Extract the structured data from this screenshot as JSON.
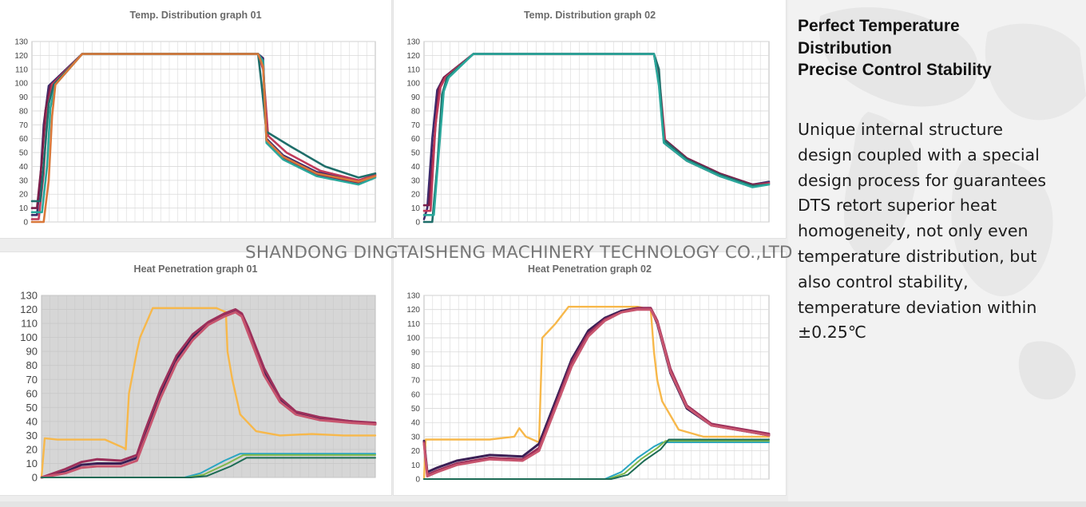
{
  "watermark": "SHANDONG DINGTAISHENG MACHINERY TECHNOLOGY CO.,LTD",
  "headline_lines": [
    "Perfect Temperature",
    "Distribution",
    "Precise Control Stability"
  ],
  "body_lines": [
    "Unique internal structure",
    "design coupled with a special",
    "design process for guarantees",
    "DTS retort superior heat",
    "homogeneity,  not only even",
    "temperature distribution, but",
    "also control stability,",
    "temperature deviation within",
    "±0.25℃"
  ],
  "colors": {
    "temp_series": [
      "#3b2a6b",
      "#7a1f4a",
      "#c03a5a",
      "#1f6e6a",
      "#2aa79b",
      "#d9783a",
      "#5a3d8a",
      "#e07a8a",
      "#1c4f86",
      "#b05a3a"
    ],
    "reference": "#f7b84b",
    "hp_cold": [
      "#2aa5c2",
      "#7fb84a",
      "#1c6b55"
    ],
    "grid": "#d9d9d9",
    "plot_bg_gray": "#d6d6d6"
  },
  "chart_data": [
    {
      "type": "line",
      "title": "Temp. Distribution graph 01",
      "ylim": [
        0,
        130
      ],
      "yticks": [
        0,
        10,
        20,
        30,
        40,
        50,
        60,
        70,
        80,
        90,
        100,
        110,
        120,
        130
      ],
      "grid": true,
      "series": [
        {
          "x": [
            0,
            3,
            5,
            7,
            10,
            30,
            135,
            138,
            140,
            150,
            170,
            195,
            205
          ],
          "y": [
            5,
            5,
            30,
            70,
            98,
            121,
            121,
            118,
            60,
            48,
            36,
            29,
            34
          ]
        },
        {
          "x": [
            0,
            3,
            6,
            8,
            11,
            30,
            135,
            138,
            140,
            150,
            170,
            195,
            205
          ],
          "y": [
            10,
            10,
            45,
            80,
            98,
            121,
            121,
            114,
            58,
            46,
            34,
            28,
            33
          ]
        },
        {
          "x": [
            0,
            4,
            7,
            9,
            12,
            30,
            135,
            138,
            141,
            152,
            172,
            195,
            205
          ],
          "y": [
            2,
            2,
            35,
            78,
            99,
            121,
            121,
            110,
            62,
            50,
            37,
            30,
            34
          ]
        },
        {
          "x": [
            0,
            5,
            8,
            10,
            13,
            30,
            135,
            137,
            140,
            155,
            175,
            195,
            205
          ],
          "y": [
            15,
            15,
            55,
            85,
            99,
            121,
            121,
            100,
            65,
            54,
            40,
            32,
            35
          ]
        },
        {
          "x": [
            0,
            6,
            9,
            11,
            14,
            30,
            135,
            138,
            140,
            150,
            170,
            195,
            205
          ],
          "y": [
            7,
            7,
            40,
            82,
            99,
            121,
            121,
            116,
            57,
            45,
            33,
            27,
            32
          ]
        },
        {
          "x": [
            0,
            7,
            10,
            12,
            14,
            30,
            135,
            138,
            140,
            150,
            170,
            195,
            205
          ],
          "y": [
            0,
            0,
            30,
            76,
            99,
            121,
            121,
            112,
            59,
            47,
            35,
            29,
            33
          ]
        }
      ]
    },
    {
      "type": "line",
      "title": "Temp. Distribution graph 02",
      "ylim": [
        0,
        130
      ],
      "yticks": [
        0,
        10,
        20,
        30,
        40,
        50,
        60,
        70,
        80,
        90,
        100,
        110,
        120,
        130
      ],
      "grid": true,
      "series": [
        {
          "x": [
            0,
            2,
            5,
            8,
            12,
            30,
            140,
            143,
            146,
            160,
            180,
            200,
            210
          ],
          "y": [
            2,
            10,
            60,
            95,
            104,
            121,
            121,
            105,
            58,
            45,
            34,
            27,
            29
          ]
        },
        {
          "x": [
            0,
            3,
            6,
            9,
            12,
            30,
            140,
            143,
            146,
            160,
            180,
            200,
            210
          ],
          "y": [
            12,
            12,
            55,
            96,
            104,
            121,
            121,
            100,
            60,
            46,
            35,
            27,
            28
          ]
        },
        {
          "x": [
            0,
            4,
            7,
            10,
            13,
            30,
            140,
            144,
            147,
            160,
            180,
            200,
            210
          ],
          "y": [
            8,
            8,
            70,
            97,
            104,
            121,
            121,
            94,
            56,
            44,
            33,
            26,
            28
          ]
        },
        {
          "x": [
            0,
            5,
            8,
            11,
            14,
            30,
            140,
            143,
            146,
            160,
            180,
            200,
            210
          ],
          "y": [
            0,
            0,
            40,
            92,
            104,
            121,
            121,
            110,
            59,
            45,
            34,
            26,
            27
          ]
        },
        {
          "x": [
            0,
            6,
            9,
            12,
            15,
            30,
            140,
            143,
            146,
            160,
            180,
            200,
            210
          ],
          "y": [
            5,
            5,
            50,
            94,
            104,
            121,
            121,
            98,
            57,
            44,
            33,
            25,
            27
          ]
        }
      ]
    },
    {
      "type": "line",
      "title": "Heat Penetration graph 01",
      "ylim": [
        0,
        130
      ],
      "yticks": [
        0,
        10,
        20,
        30,
        40,
        50,
        60,
        70,
        80,
        90,
        100,
        110,
        120,
        130
      ],
      "grid": true,
      "series": [
        {
          "role": "reference",
          "x": [
            0,
            2,
            10,
            40,
            52,
            53,
            55,
            60,
            62,
            70,
            110,
            116,
            117,
            120,
            125,
            135,
            150,
            170,
            190,
            210
          ],
          "y": [
            0,
            28,
            27,
            27,
            21,
            20,
            60,
            90,
            100,
            121,
            121,
            118,
            90,
            70,
            45,
            33,
            30,
            31,
            30,
            30
          ]
        },
        {
          "role": "product",
          "x": [
            0,
            15,
            25,
            35,
            50,
            60,
            65,
            75,
            85,
            95,
            105,
            115,
            122,
            126,
            130,
            140,
            150,
            160,
            175,
            195,
            210
          ],
          "y": [
            0,
            4,
            9,
            10,
            10,
            14,
            30,
            60,
            85,
            100,
            110,
            116,
            119,
            116,
            105,
            75,
            55,
            46,
            42,
            40,
            38
          ]
        },
        {
          "role": "product",
          "x": [
            0,
            15,
            25,
            35,
            50,
            60,
            65,
            75,
            85,
            95,
            105,
            115,
            122,
            126,
            130,
            140,
            150,
            160,
            175,
            195,
            210
          ],
          "y": [
            0,
            6,
            11,
            13,
            12,
            16,
            33,
            63,
            87,
            102,
            111,
            117,
            120,
            117,
            107,
            78,
            57,
            47,
            43,
            40,
            39
          ]
        },
        {
          "role": "product",
          "x": [
            0,
            15,
            25,
            35,
            50,
            60,
            65,
            75,
            85,
            95,
            105,
            115,
            122,
            126,
            130,
            140,
            150,
            160,
            175,
            195,
            210
          ],
          "y": [
            0,
            3,
            7,
            8,
            8,
            12,
            27,
            57,
            82,
            98,
            109,
            115,
            118,
            115,
            103,
            73,
            54,
            45,
            41,
            39,
            38
          ]
        },
        {
          "role": "cold",
          "x": [
            0,
            90,
            100,
            115,
            125,
            210
          ],
          "y": [
            0,
            0,
            3,
            12,
            17,
            17
          ]
        },
        {
          "role": "cold",
          "x": [
            0,
            92,
            102,
            117,
            127,
            210
          ],
          "y": [
            0,
            0,
            2,
            10,
            16,
            16
          ]
        },
        {
          "role": "cold",
          "x": [
            0,
            94,
            104,
            119,
            129,
            210
          ],
          "y": [
            0,
            0,
            1,
            8,
            14,
            14
          ]
        }
      ]
    },
    {
      "type": "line",
      "title": "Heat Penetration graph 02",
      "ylim": [
        0,
        130
      ],
      "yticks": [
        0,
        10,
        20,
        30,
        40,
        50,
        60,
        70,
        80,
        90,
        100,
        110,
        120,
        130
      ],
      "grid": true,
      "series": [
        {
          "role": "reference",
          "x": [
            0,
            1,
            40,
            55,
            58,
            62,
            70,
            72,
            80,
            88,
            130,
            138,
            140,
            142,
            145,
            155,
            170,
            210
          ],
          "y": [
            0,
            28,
            28,
            30,
            36,
            30,
            26,
            100,
            110,
            122,
            122,
            120,
            90,
            70,
            55,
            35,
            30,
            30
          ]
        },
        {
          "role": "product",
          "x": [
            0,
            2,
            8,
            20,
            40,
            60,
            70,
            80,
            90,
            100,
            110,
            120,
            130,
            138,
            142,
            150,
            160,
            175,
            195,
            210
          ],
          "y": [
            27,
            5,
            8,
            13,
            17,
            16,
            25,
            55,
            85,
            105,
            114,
            119,
            121,
            121,
            110,
            75,
            50,
            38,
            34,
            31
          ]
        },
        {
          "role": "product",
          "x": [
            0,
            2,
            8,
            20,
            40,
            60,
            70,
            80,
            90,
            100,
            110,
            120,
            130,
            138,
            142,
            150,
            160,
            175,
            195,
            210
          ],
          "y": [
            26,
            3,
            6,
            11,
            15,
            14,
            22,
            52,
            83,
            103,
            113,
            118,
            121,
            121,
            112,
            78,
            52,
            39,
            35,
            32
          ]
        },
        {
          "role": "product",
          "x": [
            0,
            2,
            8,
            20,
            40,
            60,
            70,
            80,
            90,
            100,
            110,
            120,
            130,
            138,
            142,
            150,
            160,
            175,
            195,
            210
          ],
          "y": [
            25,
            2,
            5,
            10,
            14,
            13,
            20,
            50,
            80,
            101,
            112,
            118,
            120,
            120,
            111,
            76,
            51,
            38,
            34,
            31
          ]
        },
        {
          "role": "cold",
          "x": [
            0,
            110,
            120,
            130,
            140,
            145,
            210
          ],
          "y": [
            0,
            0,
            5,
            15,
            23,
            26,
            26
          ]
        },
        {
          "role": "cold",
          "x": [
            0,
            112,
            122,
            132,
            142,
            147,
            210
          ],
          "y": [
            0,
            0,
            4,
            14,
            22,
            27,
            27
          ]
        },
        {
          "role": "cold",
          "x": [
            0,
            114,
            124,
            134,
            144,
            149,
            210
          ],
          "y": [
            0,
            0,
            3,
            13,
            21,
            28,
            28
          ]
        }
      ]
    }
  ]
}
